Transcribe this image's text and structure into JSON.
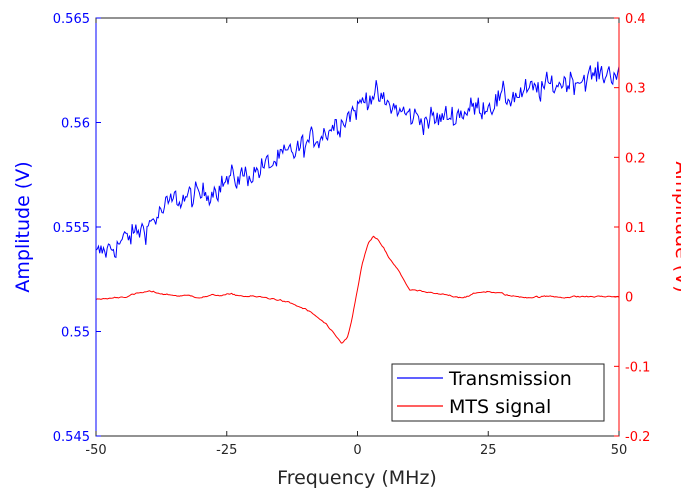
{
  "chart_data": {
    "type": "line",
    "xlabel": "Frequency (MHz)",
    "ylabel_left": "Amplitude (V)",
    "ylabel_right": "Amplitude (V)",
    "xlim": [
      -50,
      50
    ],
    "ylim_left": [
      0.545,
      0.565
    ],
    "ylim_right": [
      -0.2,
      0.4
    ],
    "x_ticks": [
      -50,
      -25,
      0,
      25,
      50
    ],
    "x_tick_labels": [
      "-50",
      "-25",
      "0",
      "25",
      "50"
    ],
    "y_left_ticks": [
      0.545,
      0.55,
      0.555,
      0.56,
      0.565
    ],
    "y_left_tick_labels": [
      "0.545",
      "0.55",
      "0.555",
      "0.56",
      "0.565"
    ],
    "y_right_ticks": [
      -0.2,
      -0.1,
      0,
      0.1,
      0.2,
      0.3,
      0.4
    ],
    "y_right_tick_labels": [
      "-0.2",
      "-0.1",
      "0",
      "0.1",
      "0.2",
      "0.3",
      "0.4"
    ],
    "grid": false,
    "legend_position": "bottom-right",
    "colors": {
      "left_axis": "#0000ff",
      "right_axis": "#ff0000",
      "transmission": "#0000ff",
      "mts": "#ff0000",
      "frame": "#262626"
    },
    "series": [
      {
        "name": "Transmission",
        "axis": "left",
        "x": [
          -50,
          -45,
          -40,
          -35,
          -30,
          -25,
          -20,
          -15,
          -10,
          -5,
          0,
          2,
          3,
          5,
          7,
          10,
          15,
          20,
          25,
          30,
          35,
          40,
          45,
          50
        ],
        "y": [
          0.5536,
          0.5543,
          0.5551,
          0.5563,
          0.5565,
          0.5572,
          0.5576,
          0.5582,
          0.5589,
          0.5598,
          0.5607,
          0.5613,
          0.5614,
          0.5609,
          0.5607,
          0.5603,
          0.5601,
          0.5605,
          0.5609,
          0.5613,
          0.5616,
          0.562,
          0.5622,
          0.5625
        ]
      },
      {
        "name": "MTS signal",
        "axis": "right",
        "x": [
          -50,
          -45,
          -40,
          -35,
          -30,
          -25,
          -20,
          -15,
          -10,
          -8,
          -6,
          -4,
          -3,
          -2,
          -1,
          0,
          1,
          2,
          3,
          4,
          5,
          6,
          7,
          8,
          10,
          15,
          20,
          25,
          30,
          35,
          40,
          45,
          50
        ],
        "y": [
          -0.005,
          0.0,
          0.007,
          0.002,
          0.0,
          0.003,
          0.0,
          -0.004,
          -0.018,
          -0.028,
          -0.04,
          -0.06,
          -0.068,
          -0.06,
          -0.03,
          0.01,
          0.05,
          0.075,
          0.085,
          0.08,
          0.07,
          0.055,
          0.045,
          0.035,
          0.01,
          0.003,
          0.0,
          0.008,
          0.0,
          0.0,
          0.0,
          0.0,
          0.0
        ]
      }
    ]
  }
}
